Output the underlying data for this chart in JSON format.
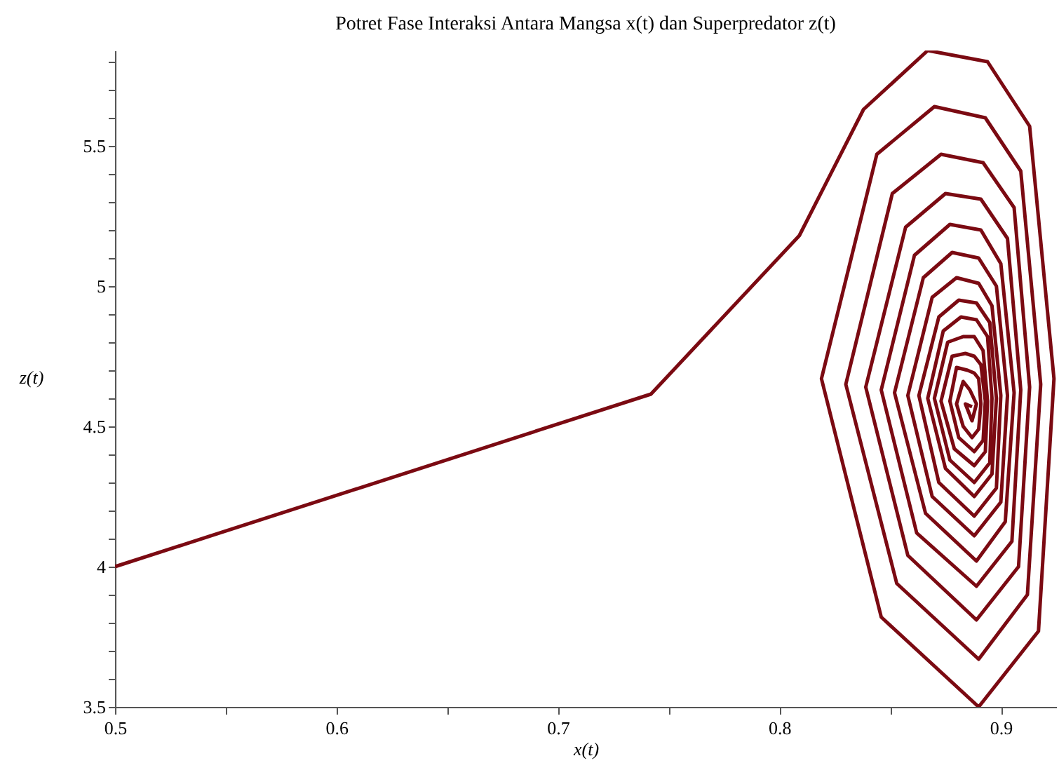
{
  "chart_data": {
    "type": "line",
    "title": "Potret Fase Interaksi Antara Mangsa x(t) dan Superpredator z(t)",
    "xlabel": "x(t)",
    "ylabel": "z(t)",
    "x": [
      0.5,
      0.742,
      0.809,
      0.838,
      0.867,
      0.894,
      0.913,
      0.924,
      0.917,
      0.89,
      0.846,
      0.819,
      0.844,
      0.87,
      0.893,
      0.909,
      0.918,
      0.912,
      0.89,
      0.853,
      0.83,
      0.851,
      0.873,
      0.892,
      0.906,
      0.913,
      0.908,
      0.889,
      0.858,
      0.839,
      0.857,
      0.875,
      0.891,
      0.903,
      0.909,
      0.905,
      0.889,
      0.862,
      0.846,
      0.861,
      0.877,
      0.891,
      0.9,
      0.906,
      0.902,
      0.889,
      0.866,
      0.852,
      0.865,
      0.878,
      0.89,
      0.898,
      0.903,
      0.9,
      0.888,
      0.869,
      0.858,
      0.869,
      0.88,
      0.89,
      0.896,
      0.9,
      0.898,
      0.888,
      0.872,
      0.863,
      0.872,
      0.881,
      0.889,
      0.895,
      0.898,
      0.896,
      0.888,
      0.875,
      0.867,
      0.874,
      0.882,
      0.889,
      0.894,
      0.896,
      0.895,
      0.888,
      0.877,
      0.87,
      0.876,
      0.883,
      0.888,
      0.892,
      0.894,
      0.893,
      0.888,
      0.879,
      0.873,
      0.878,
      0.884,
      0.888,
      0.891,
      0.893,
      0.892,
      0.888,
      0.881,
      0.877,
      0.88,
      0.885,
      0.888,
      0.89,
      0.891,
      0.89,
      0.887,
      0.883,
      0.88,
      0.883,
      0.886,
      0.889,
      0.887,
      0.884,
      0.887
    ],
    "series": [
      {
        "color": "#7b0a12",
        "values": [
          4.0,
          4.615,
          5.18,
          5.63,
          5.84,
          5.8,
          5.57,
          4.67,
          3.77,
          3.5,
          3.82,
          4.67,
          5.47,
          5.64,
          5.6,
          5.41,
          4.65,
          3.9,
          3.67,
          3.94,
          4.65,
          5.33,
          5.47,
          5.44,
          5.28,
          4.64,
          4.0,
          3.81,
          4.04,
          4.64,
          5.21,
          5.33,
          5.31,
          5.17,
          4.63,
          4.09,
          3.93,
          4.12,
          4.63,
          5.11,
          5.22,
          5.2,
          5.08,
          4.62,
          4.16,
          4.02,
          4.19,
          4.62,
          5.03,
          5.12,
          5.1,
          5.0,
          4.61,
          4.23,
          4.11,
          4.25,
          4.61,
          4.96,
          5.03,
          5.01,
          4.93,
          4.61,
          4.28,
          4.18,
          4.3,
          4.61,
          4.89,
          4.95,
          4.94,
          4.87,
          4.6,
          4.33,
          4.25,
          4.35,
          4.6,
          4.84,
          4.89,
          4.88,
          4.82,
          4.6,
          4.37,
          4.3,
          4.38,
          4.6,
          4.8,
          4.82,
          4.82,
          4.77,
          4.59,
          4.41,
          4.36,
          4.42,
          4.59,
          4.75,
          4.76,
          4.75,
          4.72,
          4.59,
          4.45,
          4.41,
          4.46,
          4.59,
          4.71,
          4.7,
          4.69,
          4.67,
          4.58,
          4.49,
          4.46,
          4.5,
          4.58,
          4.66,
          4.63,
          4.58,
          4.52,
          4.58,
          4.57
        ]
      }
    ],
    "xlim": [
      0.5,
      0.925
    ],
    "ylim": [
      3.5,
      5.84
    ],
    "xticks": [
      0.5,
      {
        "value": 0.55,
        "label": null
      },
      0.6,
      {
        "value": 0.65,
        "label": null
      },
      0.7,
      {
        "value": 0.75,
        "label": null
      },
      0.8,
      {
        "value": 0.85,
        "label": null
      },
      0.9
    ],
    "yticks": [
      3.5,
      {
        "value": 3.6,
        "label": null
      },
      {
        "value": 3.7,
        "label": null
      },
      {
        "value": 3.8,
        "label": null
      },
      {
        "value": 3.9,
        "label": null
      },
      4,
      {
        "value": 4.1,
        "label": null
      },
      {
        "value": 4.2,
        "label": null
      },
      {
        "value": 4.3,
        "label": null
      },
      {
        "value": 4.4,
        "label": null
      },
      4.5,
      {
        "value": 4.6,
        "label": null
      },
      {
        "value": 4.7,
        "label": null
      },
      {
        "value": 4.8,
        "label": null
      },
      {
        "value": 4.9,
        "label": null
      },
      5,
      {
        "value": 5.1,
        "label": null
      },
      {
        "value": 5.2,
        "label": null
      },
      {
        "value": 5.3,
        "label": null
      },
      {
        "value": 5.4,
        "label": null
      },
      5.5,
      {
        "value": 5.6,
        "label": null
      },
      {
        "value": 5.7,
        "label": null
      },
      {
        "value": 5.8,
        "label": null
      }
    ],
    "grid": false,
    "legend": false,
    "marker": "none",
    "line_style": "solid"
  }
}
